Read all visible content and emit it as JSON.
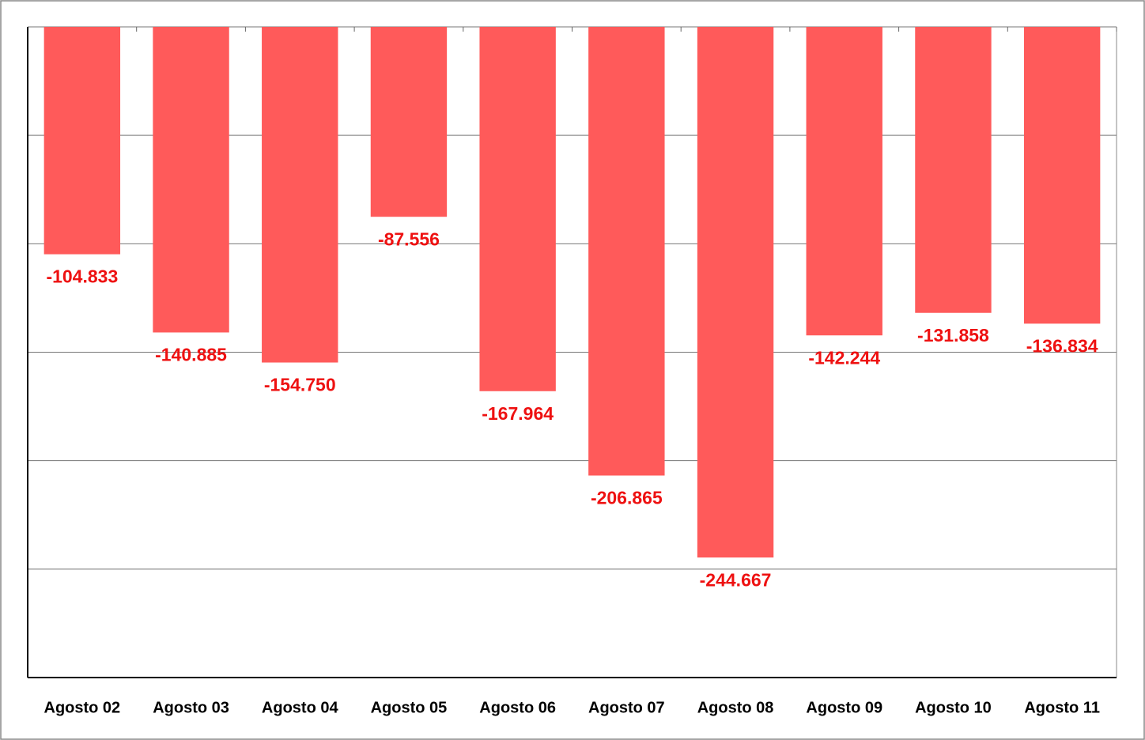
{
  "chart_data": {
    "type": "bar",
    "categories": [
      "Agosto 02",
      "Agosto 03",
      "Agosto 04",
      "Agosto 05",
      "Agosto 06",
      "Agosto 07",
      "Agosto 08",
      "Agosto 09",
      "Agosto 10",
      "Agosto 11"
    ],
    "values": [
      -104833,
      -140885,
      -154750,
      -87556,
      -167964,
      -206865,
      -244667,
      -142244,
      -131858,
      -136834
    ],
    "value_labels": [
      "-104.833",
      "-140.885",
      "-154.750",
      "-87.556",
      "-167.964",
      "-206.865",
      "-244.667",
      "-142.244",
      "-131.858",
      "-136.834"
    ],
    "color": "#ff5a5a",
    "label_color": "#ee1111",
    "ylim": [
      -300000,
      0
    ],
    "yticks": [
      0,
      -50000,
      -100000,
      -150000,
      -200000,
      -250000
    ],
    "grid": true
  }
}
